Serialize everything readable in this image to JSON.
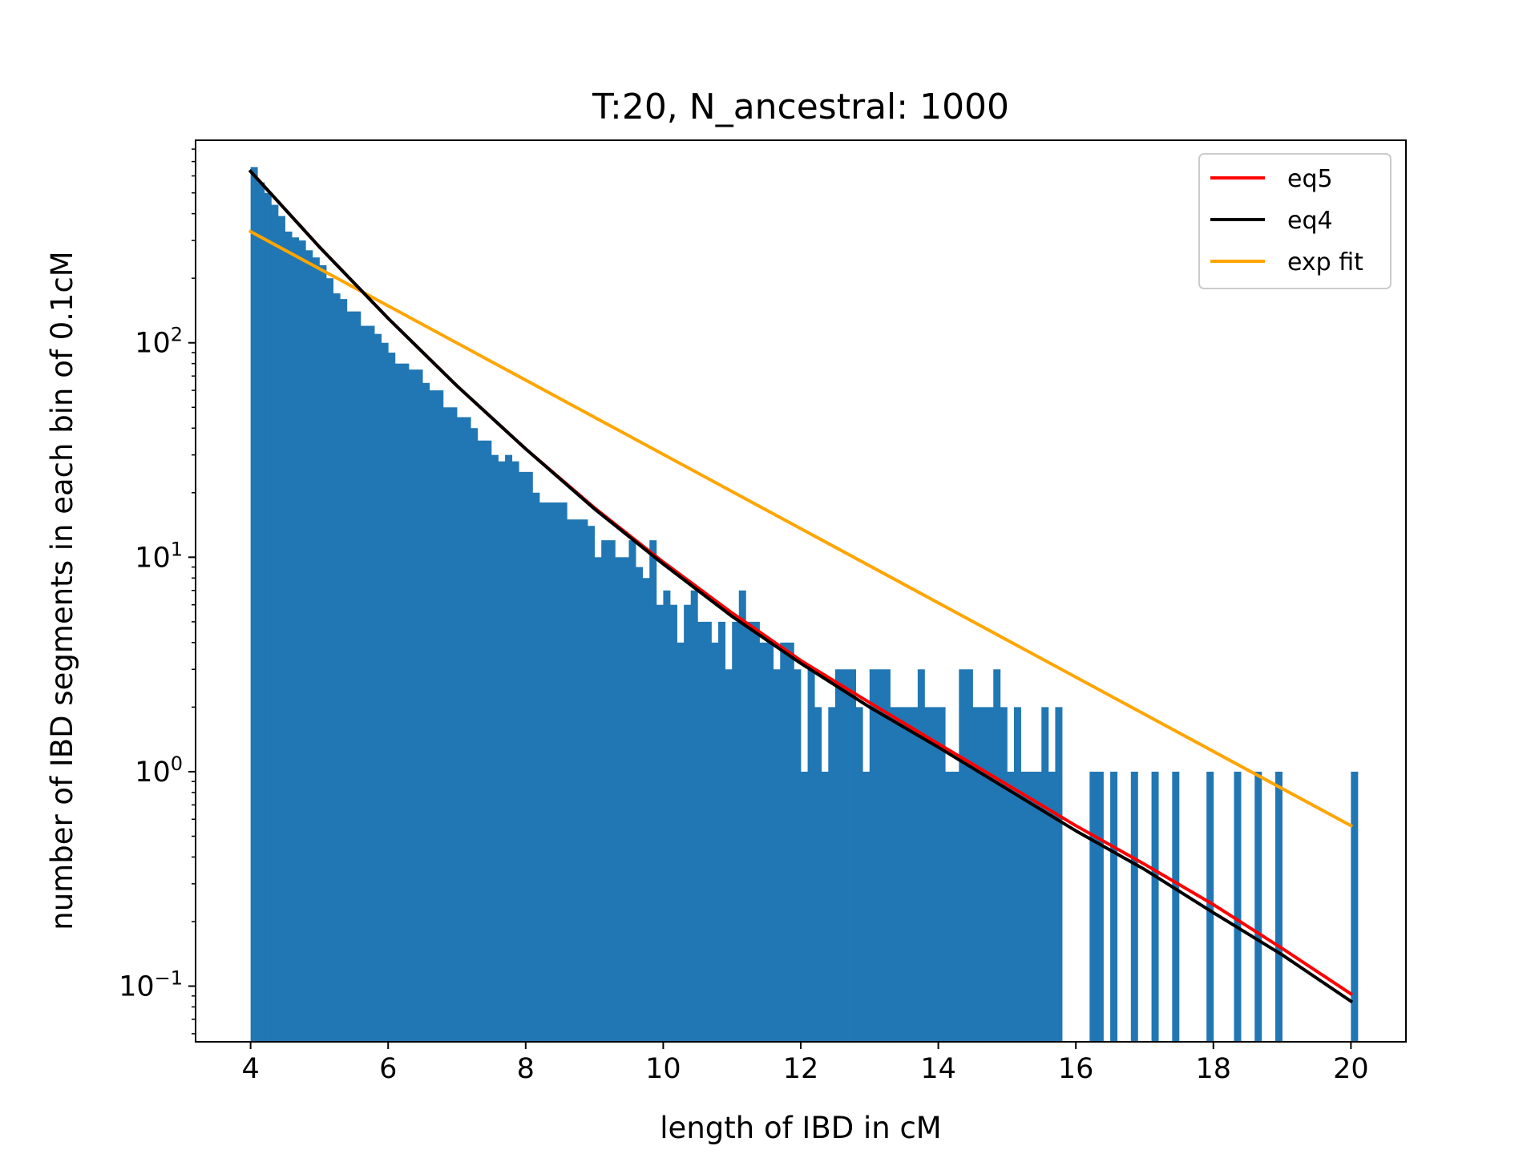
{
  "chart_data": {
    "type": "bar",
    "title": "T:20, N_ancestral: 1000",
    "xlabel": "length of IBD in cM",
    "ylabel": "number of IBD segments in each bin of 0.1cM",
    "xlim": [
      3.2,
      20.8
    ],
    "ylim": [
      0.055,
      880
    ],
    "yscale": "log",
    "grid": false,
    "legend_position": "top-right",
    "x_ticks": [
      "4",
      "6",
      "8",
      "10",
      "12",
      "14",
      "16",
      "18",
      "20"
    ],
    "y_ticks": [
      {
        "base": "10",
        "exp": "2"
      },
      {
        "base": "10",
        "exp": "1"
      },
      {
        "base": "10",
        "exp": "0"
      },
      {
        "base": "10",
        "exp": "−1"
      }
    ],
    "histogram": {
      "bin_start": 4.0,
      "bin_width": 0.1,
      "color": "#2177b4",
      "counts": [
        660,
        560,
        500,
        440,
        390,
        330,
        310,
        300,
        270,
        250,
        230,
        200,
        170,
        160,
        140,
        140,
        120,
        120,
        110,
        100,
        90,
        80,
        80,
        75,
        75,
        65,
        60,
        60,
        50,
        50,
        45,
        45,
        40,
        35,
        35,
        30,
        28,
        30,
        28,
        25,
        25,
        20,
        18,
        18,
        18,
        18,
        15,
        15,
        15,
        14,
        10,
        12,
        12,
        10,
        10,
        12,
        9,
        8,
        12,
        6,
        7,
        6,
        4,
        6,
        7,
        5,
        5,
        4,
        5,
        3,
        5,
        7,
        5,
        5,
        4,
        4,
        3,
        4,
        4,
        3,
        1,
        3,
        2,
        1,
        2,
        3,
        3,
        3,
        2,
        1,
        3,
        3,
        3,
        2,
        2,
        2,
        2,
        3,
        2,
        2,
        2,
        1,
        1,
        3,
        3,
        2,
        2,
        2,
        3,
        2,
        1,
        2,
        1,
        1,
        1,
        2,
        1,
        2,
        0,
        0,
        0,
        0,
        1,
        1,
        0,
        1,
        0,
        0,
        1,
        0,
        0,
        1,
        0,
        0,
        1,
        0,
        0,
        0,
        0,
        1,
        0,
        0,
        0,
        1,
        0,
        0,
        1,
        0,
        0,
        1,
        0,
        0,
        0,
        0,
        0,
        0,
        0,
        0,
        0,
        0,
        1,
        0,
        0,
        0,
        0,
        0,
        0,
        0,
        0,
        0
      ]
    },
    "series": [
      {
        "name": "eq5",
        "color": "#ff0000",
        "x": [
          4,
          5,
          6,
          7,
          8,
          9,
          10,
          11,
          12,
          13,
          14,
          15,
          16,
          17,
          18,
          19,
          20
        ],
        "y": [
          630,
          280,
          130,
          63,
          32,
          17,
          9.5,
          5.5,
          3.3,
          2.1,
          1.35,
          0.87,
          0.56,
          0.37,
          0.24,
          0.15,
          0.092
        ]
      },
      {
        "name": "eq4",
        "color": "#000000",
        "x": [
          4,
          5,
          6,
          7,
          8,
          9,
          10,
          11,
          12,
          13,
          14,
          15,
          16,
          17,
          18,
          19,
          20
        ],
        "y": [
          630,
          280,
          130,
          63,
          32,
          16.8,
          9.3,
          5.3,
          3.2,
          2.0,
          1.3,
          0.83,
          0.53,
          0.35,
          0.22,
          0.14,
          0.085
        ]
      },
      {
        "name": "exp fit",
        "color": "#ffa500",
        "x": [
          4,
          20
        ],
        "y": [
          330,
          0.56
        ]
      }
    ]
  }
}
